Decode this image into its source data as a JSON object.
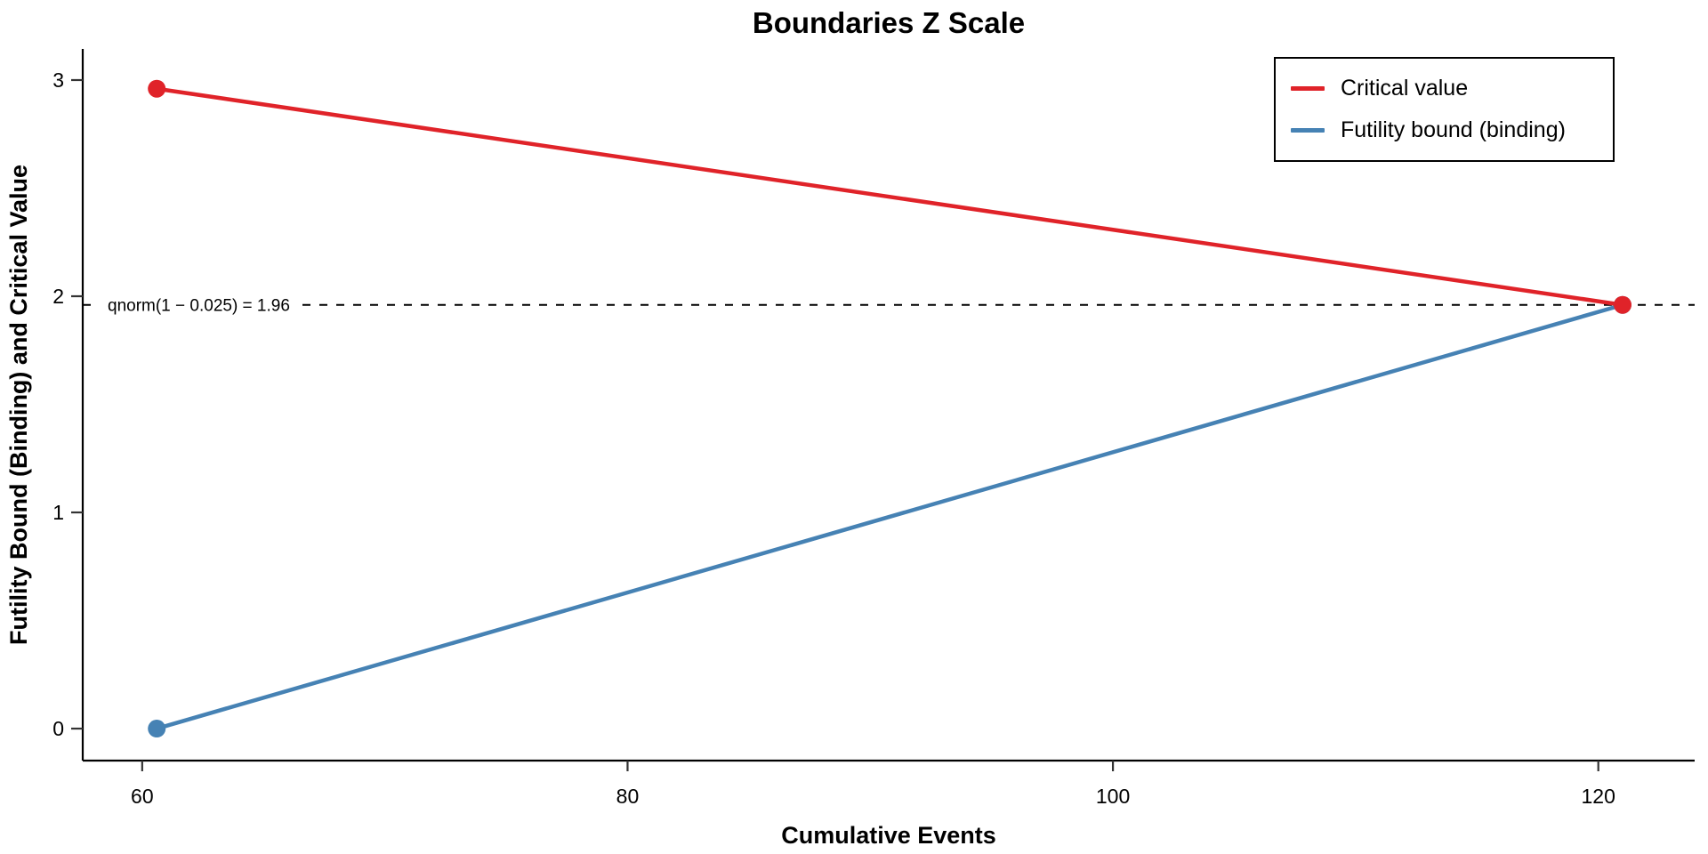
{
  "title": "Boundaries Z Scale",
  "colors": {
    "critical": "#e02329",
    "futility": "#4682b4",
    "axis_line": "#000000",
    "tick_mark": "#333333",
    "tick_label": "#4d4d4d",
    "reference_line": "#000000",
    "background": "#ffffff"
  },
  "legend": {
    "entries": [
      {
        "label": "Critical value",
        "color": "#e02329"
      },
      {
        "label": "Futility bound (binding)",
        "color": "#4682b4"
      }
    ]
  },
  "chart_data": {
    "type": "line",
    "title": "Boundaries Z Scale",
    "xlabel": "Cumulative Events",
    "ylabel": "Futility Bound (Binding) and Critical Value",
    "x_ticks": [
      60,
      80,
      100,
      120
    ],
    "y_ticks": [
      0,
      1,
      2,
      3
    ],
    "xlim": [
      57.55,
      123.97
    ],
    "ylim": [
      -0.148,
      3.144
    ],
    "grid": false,
    "legend_position": "top-right",
    "series": [
      {
        "name": "Critical value",
        "color": "#e02329",
        "x": [
          60.6,
          121
        ],
        "y": [
          2.96,
          1.96
        ]
      },
      {
        "name": "Futility bound (binding)",
        "color": "#4682b4",
        "x": [
          60.6,
          121
        ],
        "y": [
          0,
          1.96
        ]
      }
    ],
    "reference_line": {
      "y": 1.96,
      "style": "dashed",
      "label": "qnorm(1 − 0.025) = 1.96"
    }
  }
}
